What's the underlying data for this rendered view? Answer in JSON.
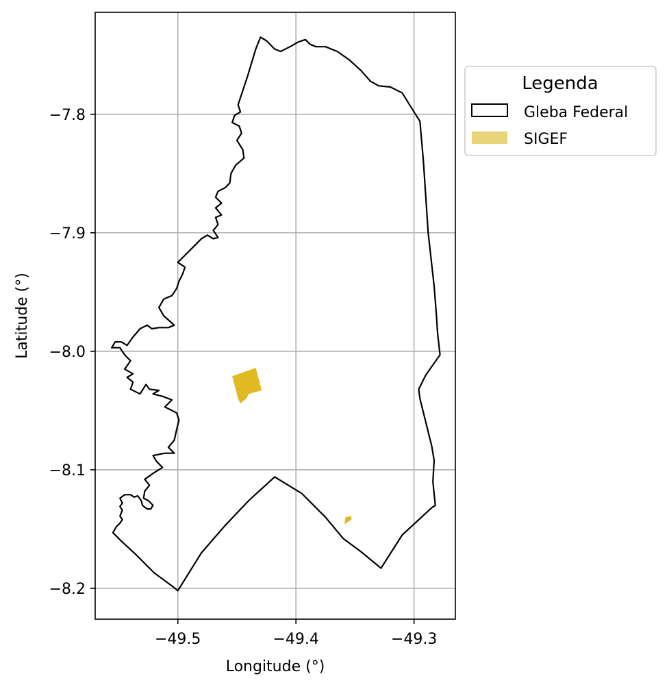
{
  "map": {
    "xlabel": "Longitude (°)",
    "ylabel": "Latitude (°)",
    "xlim": [
      -49.57,
      -49.265
    ],
    "ylim": [
      -8.226,
      -7.714
    ],
    "xticks": [
      -49.5,
      -49.4,
      -49.3
    ],
    "yticks": [
      -7.8,
      -7.9,
      -8.0,
      -8.1,
      -8.2
    ],
    "xtick_labels": [
      "−49.5",
      "−49.4",
      "−49.3"
    ],
    "ytick_labels": [
      "−7.8",
      "−7.9",
      "−8.0",
      "−8.1",
      "−8.2"
    ],
    "grid": true
  },
  "legend": {
    "title": "Legenda",
    "placement": "outside-upper-right",
    "items": [
      {
        "label": "Gleba Federal",
        "style": "outline",
        "color": "#000000"
      },
      {
        "label": "SIGEF",
        "style": "fill",
        "color": "#e8d478"
      }
    ]
  },
  "layers": {
    "gleba_federal": {
      "label": "Gleba Federal",
      "stroke": "#000000",
      "fill": "none",
      "coords": [
        [
          -49.43,
          -7.735
        ],
        [
          -49.425,
          -7.738
        ],
        [
          -49.418,
          -7.745
        ],
        [
          -49.413,
          -7.747
        ],
        [
          -49.405,
          -7.743
        ],
        [
          -49.398,
          -7.739
        ],
        [
          -49.392,
          -7.737
        ],
        [
          -49.388,
          -7.741
        ],
        [
          -49.383,
          -7.743
        ],
        [
          -49.375,
          -7.743
        ],
        [
          -49.365,
          -7.747
        ],
        [
          -49.355,
          -7.754
        ],
        [
          -49.345,
          -7.763
        ],
        [
          -49.337,
          -7.772
        ],
        [
          -49.33,
          -7.776
        ],
        [
          -49.32,
          -7.777
        ],
        [
          -49.31,
          -7.782
        ],
        [
          -49.3,
          -7.798
        ],
        [
          -49.295,
          -7.806
        ],
        [
          -49.292,
          -7.84
        ],
        [
          -49.288,
          -7.9
        ],
        [
          -49.283,
          -7.945
        ],
        [
          -49.281,
          -7.97
        ],
        [
          -49.28,
          -7.985
        ],
        [
          -49.278,
          -8.003
        ],
        [
          -49.29,
          -8.02
        ],
        [
          -49.296,
          -8.032
        ],
        [
          -49.295,
          -8.04
        ],
        [
          -49.29,
          -8.06
        ],
        [
          -49.285,
          -8.08
        ],
        [
          -49.283,
          -8.092
        ],
        [
          -49.284,
          -8.11
        ],
        [
          -49.282,
          -8.13
        ],
        [
          -49.285,
          -8.132
        ],
        [
          -49.31,
          -8.155
        ],
        [
          -49.328,
          -8.183
        ],
        [
          -49.345,
          -8.169
        ],
        [
          -49.36,
          -8.158
        ],
        [
          -49.375,
          -8.14
        ],
        [
          -49.395,
          -8.12
        ],
        [
          -49.418,
          -8.106
        ],
        [
          -49.44,
          -8.126
        ],
        [
          -49.46,
          -8.147
        ],
        [
          -49.48,
          -8.17
        ],
        [
          -49.5,
          -8.202
        ],
        [
          -49.505,
          -8.198
        ],
        [
          -49.52,
          -8.187
        ],
        [
          -49.535,
          -8.172
        ],
        [
          -49.548,
          -8.16
        ],
        [
          -49.555,
          -8.153
        ],
        [
          -49.552,
          -8.148
        ],
        [
          -49.549,
          -8.145
        ],
        [
          -49.547,
          -8.142
        ],
        [
          -49.549,
          -8.139
        ],
        [
          -49.547,
          -8.134
        ],
        [
          -49.549,
          -8.131
        ],
        [
          -49.547,
          -8.128
        ],
        [
          -49.549,
          -8.124
        ],
        [
          -49.545,
          -8.121
        ],
        [
          -49.54,
          -8.121
        ],
        [
          -49.537,
          -8.123
        ],
        [
          -49.534,
          -8.122
        ],
        [
          -49.531,
          -8.126
        ],
        [
          -49.53,
          -8.13
        ],
        [
          -49.526,
          -8.133
        ],
        [
          -49.523,
          -8.133
        ],
        [
          -49.521,
          -8.13
        ],
        [
          -49.525,
          -8.126
        ],
        [
          -49.529,
          -8.124
        ],
        [
          -49.528,
          -8.118
        ],
        [
          -49.524,
          -8.113
        ],
        [
          -49.528,
          -8.108
        ],
        [
          -49.521,
          -8.103
        ],
        [
          -49.513,
          -8.098
        ],
        [
          -49.518,
          -8.093
        ],
        [
          -49.521,
          -8.088
        ],
        [
          -49.511,
          -8.086
        ],
        [
          -49.503,
          -8.086
        ],
        [
          -49.508,
          -8.081
        ],
        [
          -49.503,
          -8.075
        ],
        [
          -49.501,
          -8.066
        ],
        [
          -49.499,
          -8.058
        ],
        [
          -49.501,
          -8.052
        ],
        [
          -49.505,
          -8.05
        ],
        [
          -49.511,
          -8.047
        ],
        [
          -49.505,
          -8.041
        ],
        [
          -49.513,
          -8.038
        ],
        [
          -49.521,
          -8.036
        ],
        [
          -49.516,
          -8.033
        ],
        [
          -49.524,
          -8.032
        ],
        [
          -49.527,
          -8.028
        ],
        [
          -49.532,
          -8.036
        ],
        [
          -49.54,
          -8.032
        ],
        [
          -49.538,
          -8.026
        ],
        [
          -49.543,
          -8.022
        ],
        [
          -49.538,
          -8.019
        ],
        [
          -49.545,
          -8.015
        ],
        [
          -49.54,
          -8.008
        ],
        [
          -49.545,
          -8.003
        ],
        [
          -49.549,
          -7.997
        ],
        [
          -49.556,
          -7.997
        ],
        [
          -49.553,
          -7.992
        ],
        [
          -49.548,
          -7.992
        ],
        [
          -49.543,
          -7.995
        ],
        [
          -49.538,
          -7.988
        ],
        [
          -49.532,
          -7.981
        ],
        [
          -49.526,
          -7.978
        ],
        [
          -49.522,
          -7.981
        ],
        [
          -49.516,
          -7.98
        ],
        [
          -49.508,
          -7.98
        ],
        [
          -49.503,
          -7.978
        ],
        [
          -49.512,
          -7.97
        ],
        [
          -49.516,
          -7.963
        ],
        [
          -49.512,
          -7.956
        ],
        [
          -49.505,
          -7.953
        ],
        [
          -49.501,
          -7.947
        ],
        [
          -49.499,
          -7.941
        ],
        [
          -49.496,
          -7.935
        ],
        [
          -49.494,
          -7.929
        ],
        [
          -49.5,
          -7.925
        ],
        [
          -49.495,
          -7.92
        ],
        [
          -49.49,
          -7.915
        ],
        [
          -49.485,
          -7.91
        ],
        [
          -49.48,
          -7.905
        ],
        [
          -49.475,
          -7.902
        ],
        [
          -49.47,
          -7.905
        ],
        [
          -49.466,
          -7.904
        ],
        [
          -49.47,
          -7.898
        ],
        [
          -49.466,
          -7.893
        ],
        [
          -49.468,
          -7.887
        ],
        [
          -49.463,
          -7.885
        ],
        [
          -49.468,
          -7.879
        ],
        [
          -49.463,
          -7.875
        ],
        [
          -49.468,
          -7.87
        ],
        [
          -49.466,
          -7.865
        ],
        [
          -49.46,
          -7.862
        ],
        [
          -49.456,
          -7.858
        ],
        [
          -49.455,
          -7.85
        ],
        [
          -49.451,
          -7.843
        ],
        [
          -49.444,
          -7.837
        ],
        [
          -49.445,
          -7.83
        ],
        [
          -49.45,
          -7.822
        ],
        [
          -49.446,
          -7.816
        ],
        [
          -49.448,
          -7.81
        ],
        [
          -49.454,
          -7.807
        ],
        [
          -49.452,
          -7.801
        ],
        [
          -49.447,
          -7.798
        ],
        [
          -49.449,
          -7.792
        ],
        [
          -49.448,
          -7.789
        ],
        [
          -49.441,
          -7.768
        ],
        [
          -49.434,
          -7.745
        ],
        [
          -49.43,
          -7.735
        ]
      ]
    },
    "sigef": {
      "label": "SIGEF",
      "fill": "#dfba22",
      "parcels": [
        [
          [
            -49.454,
            -8.021
          ],
          [
            -49.434,
            -8.014
          ],
          [
            -49.429,
            -8.033
          ],
          [
            -49.44,
            -8.036
          ],
          [
            -49.442,
            -8.04
          ],
          [
            -49.447,
            -8.044
          ],
          [
            -49.449,
            -8.04
          ]
        ],
        [
          [
            -49.358,
            -8.14
          ],
          [
            -49.353,
            -8.139
          ],
          [
            -49.353,
            -8.142
          ],
          [
            -49.359,
            -8.146
          ]
        ]
      ]
    }
  }
}
